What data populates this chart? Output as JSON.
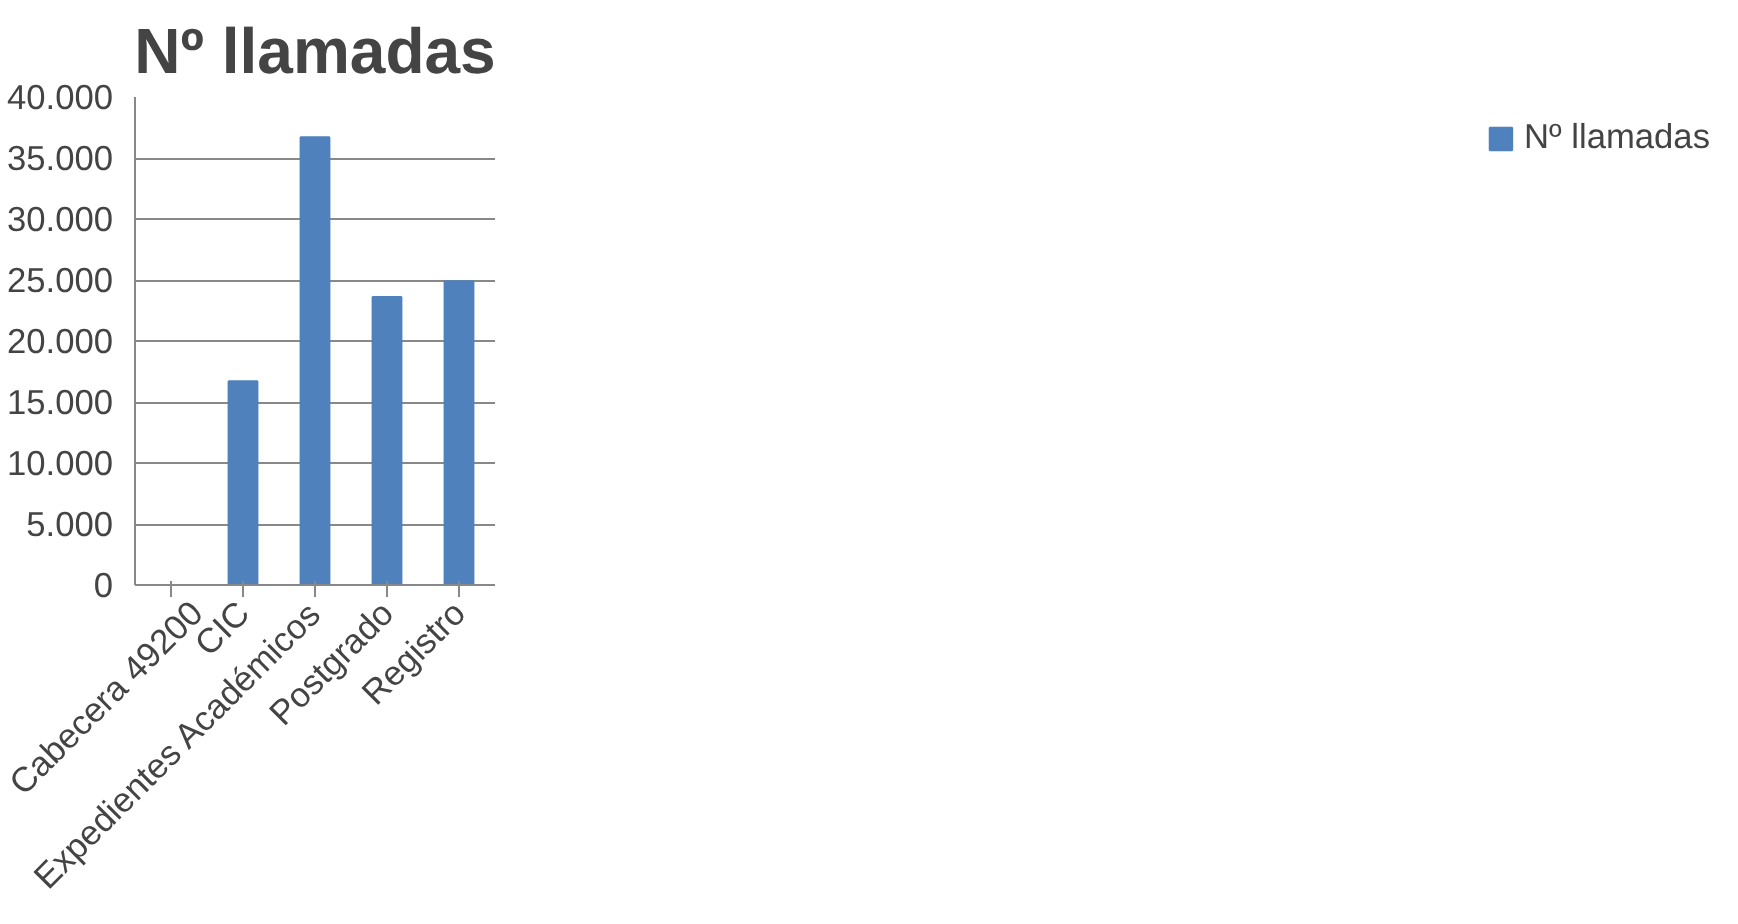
{
  "chart_data": {
    "type": "bar",
    "title": "Nº llamadas",
    "categories": [
      "Cabecera 49200",
      "CIC",
      "Expedientes Académicos",
      "Postgrado",
      "Registro"
    ],
    "series": [
      {
        "name": "Nº llamadas",
        "color": "#4f81bd",
        "values": [
          0,
          16700,
          36700,
          23600,
          24900
        ]
      }
    ],
    "ylim": [
      0,
      40000
    ],
    "yticks": [
      {
        "value": 0,
        "label": "0"
      },
      {
        "value": 5000,
        "label": "5.000"
      },
      {
        "value": 10000,
        "label": "10.000"
      },
      {
        "value": 15000,
        "label": "15.000"
      },
      {
        "value": 20000,
        "label": "20.000"
      },
      {
        "value": 25000,
        "label": "25.000"
      },
      {
        "value": 30000,
        "label": "30.000"
      },
      {
        "value": 35000,
        "label": "35.000"
      },
      {
        "value": 40000,
        "label": "40.000"
      }
    ],
    "grid": "y",
    "legend": "right"
  }
}
